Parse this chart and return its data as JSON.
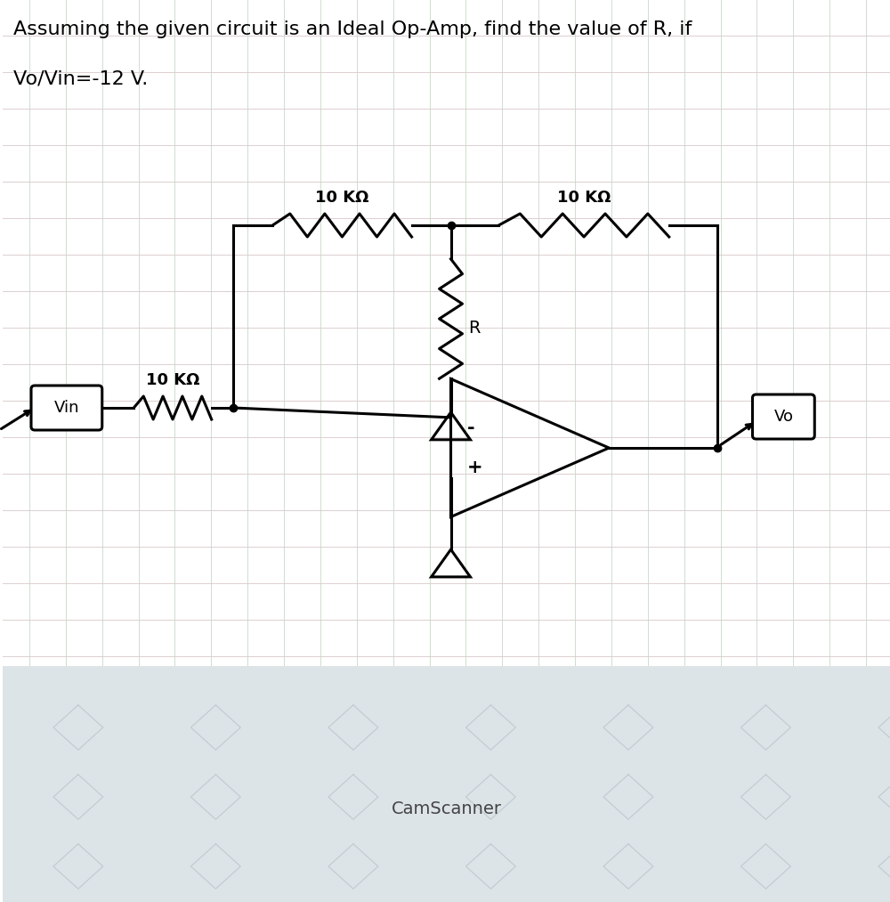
{
  "title_line1": "Assuming the given circuit is an Ideal Op-Amp, find the value of R, if",
  "title_line2": "Vo/Vin=-12 V.",
  "label_10k_top_left": "10 KΩ",
  "label_10k_top_right": "10 KΩ",
  "label_10k_bottom": "10 KΩ",
  "label_R": "R",
  "label_Vin": "Vin",
  "label_Vo": "Vo",
  "label_minus": "-",
  "label_plus": "+",
  "label_camscanner": "CamScanner",
  "bg_color": "#ffffff",
  "circuit_color": "#000000",
  "grid_color_h": "#d8c8c8",
  "grid_color_v": "#c8d8c8",
  "watermark_bg": "#dde4e8",
  "watermark_line": "#bec8d0",
  "title_fontsize": 16,
  "label_fontsize": 13,
  "small_fontsize": 12,
  "lw": 2.2,
  "resistor_amp": 0.13,
  "n_zigzag": 8
}
